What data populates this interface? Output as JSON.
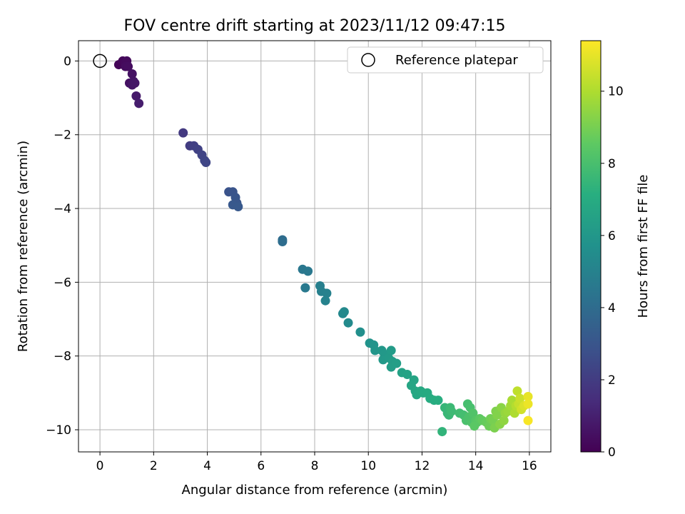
{
  "chart_data": {
    "type": "scatter",
    "title": "FOV centre drift starting at 2023/11/12 09:47:15",
    "xlabel": "Angular distance from reference (arcmin)",
    "ylabel": "Rotation from reference (arcmin)",
    "xlim": [
      -0.8,
      16.8
    ],
    "ylim": [
      -10.6,
      0.55
    ],
    "xticks": [
      0,
      2,
      4,
      6,
      8,
      10,
      12,
      14,
      16
    ],
    "yticks": [
      0,
      -2,
      -4,
      -6,
      -8,
      -10
    ],
    "grid": true,
    "legend": {
      "position": "top-right",
      "entries": [
        "Reference platepar"
      ]
    },
    "reference_point": {
      "x": 0,
      "y": 0
    },
    "colorbar": {
      "label": "Hours from first FF file",
      "colormap": "viridis",
      "range": [
        0,
        11.4
      ],
      "ticks": [
        0,
        2,
        4,
        6,
        8,
        10
      ]
    },
    "points": [
      {
        "x": 0.7,
        "y": -0.1,
        "c": 0.1
      },
      {
        "x": 0.85,
        "y": 0.0,
        "c": 0.2
      },
      {
        "x": 0.95,
        "y": -0.05,
        "c": 0.25
      },
      {
        "x": 1.0,
        "y": 0.0,
        "c": 0.3
      },
      {
        "x": 0.95,
        "y": -0.15,
        "c": 0.35
      },
      {
        "x": 1.05,
        "y": -0.15,
        "c": 0.4
      },
      {
        "x": 1.1,
        "y": -0.6,
        "c": 0.5
      },
      {
        "x": 1.2,
        "y": -0.35,
        "c": 0.55
      },
      {
        "x": 1.25,
        "y": -0.55,
        "c": 0.6
      },
      {
        "x": 1.2,
        "y": -0.65,
        "c": 0.65
      },
      {
        "x": 1.3,
        "y": -0.6,
        "c": 0.7
      },
      {
        "x": 1.35,
        "y": -0.95,
        "c": 0.8
      },
      {
        "x": 1.45,
        "y": -1.15,
        "c": 0.9
      },
      {
        "x": 3.1,
        "y": -1.95,
        "c": 1.9
      },
      {
        "x": 3.35,
        "y": -2.3,
        "c": 2.0
      },
      {
        "x": 3.5,
        "y": -2.3,
        "c": 2.1
      },
      {
        "x": 3.65,
        "y": -2.4,
        "c": 2.2
      },
      {
        "x": 3.8,
        "y": -2.55,
        "c": 2.3
      },
      {
        "x": 3.9,
        "y": -2.7,
        "c": 2.35
      },
      {
        "x": 3.95,
        "y": -2.75,
        "c": 2.4
      },
      {
        "x": 4.8,
        "y": -3.55,
        "c": 2.9
      },
      {
        "x": 4.95,
        "y": -3.55,
        "c": 2.95
      },
      {
        "x": 5.05,
        "y": -3.7,
        "c": 3.0
      },
      {
        "x": 5.1,
        "y": -3.85,
        "c": 3.05
      },
      {
        "x": 4.95,
        "y": -3.9,
        "c": 3.1
      },
      {
        "x": 5.15,
        "y": -3.95,
        "c": 3.15
      },
      {
        "x": 6.8,
        "y": -4.85,
        "c": 4.0
      },
      {
        "x": 6.8,
        "y": -4.9,
        "c": 4.05
      },
      {
        "x": 7.55,
        "y": -5.65,
        "c": 4.5
      },
      {
        "x": 7.75,
        "y": -5.7,
        "c": 4.55
      },
      {
        "x": 7.65,
        "y": -6.15,
        "c": 4.6
      },
      {
        "x": 8.2,
        "y": -6.1,
        "c": 4.85
      },
      {
        "x": 8.25,
        "y": -6.25,
        "c": 4.9
      },
      {
        "x": 8.45,
        "y": -6.3,
        "c": 4.95
      },
      {
        "x": 8.4,
        "y": -6.5,
        "c": 5.0
      },
      {
        "x": 9.05,
        "y": -6.85,
        "c": 5.3
      },
      {
        "x": 9.1,
        "y": -6.8,
        "c": 5.35
      },
      {
        "x": 9.25,
        "y": -7.1,
        "c": 5.4
      },
      {
        "x": 9.7,
        "y": -7.35,
        "c": 5.6
      },
      {
        "x": 10.05,
        "y": -7.65,
        "c": 5.8
      },
      {
        "x": 10.2,
        "y": -7.7,
        "c": 5.85
      },
      {
        "x": 10.25,
        "y": -7.85,
        "c": 5.9
      },
      {
        "x": 10.5,
        "y": -7.85,
        "c": 6.0
      },
      {
        "x": 10.6,
        "y": -7.95,
        "c": 6.05
      },
      {
        "x": 10.55,
        "y": -8.1,
        "c": 6.1
      },
      {
        "x": 10.75,
        "y": -8.05,
        "c": 6.15
      },
      {
        "x": 10.85,
        "y": -7.85,
        "c": 6.2
      },
      {
        "x": 10.9,
        "y": -8.15,
        "c": 6.25
      },
      {
        "x": 10.85,
        "y": -8.3,
        "c": 6.3
      },
      {
        "x": 11.05,
        "y": -8.2,
        "c": 6.35
      },
      {
        "x": 11.25,
        "y": -8.45,
        "c": 6.5
      },
      {
        "x": 11.45,
        "y": -8.5,
        "c": 6.55
      },
      {
        "x": 11.7,
        "y": -8.65,
        "c": 6.65
      },
      {
        "x": 11.6,
        "y": -8.8,
        "c": 6.7
      },
      {
        "x": 11.75,
        "y": -8.95,
        "c": 6.75
      },
      {
        "x": 11.8,
        "y": -9.05,
        "c": 6.8
      },
      {
        "x": 11.95,
        "y": -8.95,
        "c": 6.85
      },
      {
        "x": 12.05,
        "y": -9.0,
        "c": 6.9
      },
      {
        "x": 12.2,
        "y": -9.0,
        "c": 6.95
      },
      {
        "x": 12.3,
        "y": -9.15,
        "c": 7.0
      },
      {
        "x": 12.45,
        "y": -9.2,
        "c": 7.05
      },
      {
        "x": 12.6,
        "y": -9.2,
        "c": 7.1
      },
      {
        "x": 12.75,
        "y": -10.05,
        "c": 7.4
      },
      {
        "x": 12.85,
        "y": -9.4,
        "c": 7.5
      },
      {
        "x": 12.95,
        "y": -9.55,
        "c": 7.55
      },
      {
        "x": 13.0,
        "y": -9.6,
        "c": 7.6
      },
      {
        "x": 13.05,
        "y": -9.4,
        "c": 7.65
      },
      {
        "x": 13.1,
        "y": -9.5,
        "c": 7.7
      },
      {
        "x": 13.4,
        "y": -9.55,
        "c": 7.8
      },
      {
        "x": 13.55,
        "y": -9.6,
        "c": 7.9
      },
      {
        "x": 13.7,
        "y": -9.3,
        "c": 7.95
      },
      {
        "x": 13.8,
        "y": -9.4,
        "c": 8.0
      },
      {
        "x": 13.65,
        "y": -9.75,
        "c": 8.05
      },
      {
        "x": 13.75,
        "y": -9.65,
        "c": 8.1
      },
      {
        "x": 13.85,
        "y": -9.8,
        "c": 8.15
      },
      {
        "x": 13.9,
        "y": -9.55,
        "c": 8.2
      },
      {
        "x": 14.0,
        "y": -9.75,
        "c": 8.3
      },
      {
        "x": 14.05,
        "y": -9.8,
        "c": 8.4
      },
      {
        "x": 13.95,
        "y": -9.9,
        "c": 8.45
      },
      {
        "x": 14.15,
        "y": -9.7,
        "c": 8.5
      },
      {
        "x": 14.25,
        "y": -9.75,
        "c": 8.6
      },
      {
        "x": 14.4,
        "y": -9.8,
        "c": 8.7
      },
      {
        "x": 14.5,
        "y": -9.9,
        "c": 8.8
      },
      {
        "x": 14.55,
        "y": -9.7,
        "c": 8.9
      },
      {
        "x": 14.65,
        "y": -9.75,
        "c": 9.0
      },
      {
        "x": 14.7,
        "y": -9.95,
        "c": 9.1
      },
      {
        "x": 14.75,
        "y": -9.5,
        "c": 9.15
      },
      {
        "x": 14.8,
        "y": -9.6,
        "c": 9.2
      },
      {
        "x": 14.9,
        "y": -9.85,
        "c": 9.3
      },
      {
        "x": 14.95,
        "y": -9.4,
        "c": 9.35
      },
      {
        "x": 15.05,
        "y": -9.75,
        "c": 9.45
      },
      {
        "x": 15.1,
        "y": -9.55,
        "c": 9.55
      },
      {
        "x": 15.2,
        "y": -9.5,
        "c": 9.65
      },
      {
        "x": 15.3,
        "y": -9.35,
        "c": 9.8
      },
      {
        "x": 15.35,
        "y": -9.2,
        "c": 9.9
      },
      {
        "x": 15.45,
        "y": -9.55,
        "c": 10.0
      },
      {
        "x": 15.5,
        "y": -9.35,
        "c": 10.1
      },
      {
        "x": 15.55,
        "y": -8.95,
        "c": 10.3
      },
      {
        "x": 15.6,
        "y": -9.3,
        "c": 10.4
      },
      {
        "x": 15.65,
        "y": -9.15,
        "c": 10.5
      },
      {
        "x": 15.7,
        "y": -9.45,
        "c": 10.6
      },
      {
        "x": 15.8,
        "y": -9.35,
        "c": 10.8
      },
      {
        "x": 15.95,
        "y": -9.1,
        "c": 11.0
      },
      {
        "x": 15.95,
        "y": -9.3,
        "c": 11.1
      },
      {
        "x": 15.95,
        "y": -9.75,
        "c": 11.3
      }
    ]
  }
}
